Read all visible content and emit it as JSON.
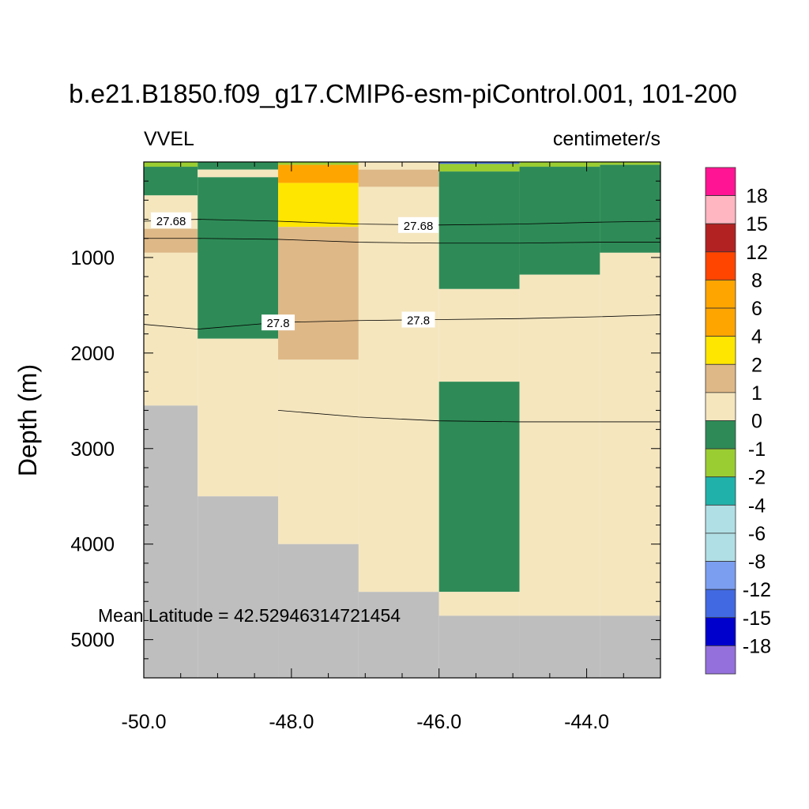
{
  "chart_data": {
    "type": "heatmap",
    "title": "b.e21.B1850.f09_g17.CMIP6-esm-piControl.001, 101-200",
    "left_label": "VVEL",
    "right_label": "centimeter/s",
    "ylabel": "Depth (m)",
    "xlabel": "",
    "annotation": "Mean Latitude = 42.52946314721454",
    "xlim": [
      -50.0,
      -43.0
    ],
    "ylim": [
      0,
      5400
    ],
    "y_reversed": true,
    "x_ticks": [
      "-50.0",
      "-48.0",
      "-46.0",
      "-44.0"
    ],
    "x_tick_values": [
      -50,
      -48,
      -46,
      -44
    ],
    "y_ticks": [
      "1000",
      "2000",
      "3000",
      "4000",
      "5000"
    ],
    "y_tick_values": [
      1000,
      2000,
      3000,
      4000,
      5000
    ],
    "colors": {
      "c18": "#ff1493",
      "c15": "#ffb6c1",
      "c12": "#b22222",
      "c8": "#ff4500",
      "c6": "#ffa500",
      "c4": "#ffa500",
      "c2": "#ffe600",
      "c1": "#deb887",
      "c0": "#f5e6be",
      "cm1": "#2e8b57",
      "cm2": "#9acd32",
      "cm4": "#20b2aa",
      "cm6": "#b0e0e6",
      "cm8": "#b0dfe5",
      "cm12": "#7b9ef0",
      "cm15": "#4169e1",
      "cm18": "#0000cd",
      "cm20": "#9370db",
      "land": "#bebebe",
      "orange": "#ffa500"
    },
    "colorbar": {
      "colors": [
        "#ff1493",
        "#ffb6c1",
        "#b22222",
        "#ff4500",
        "#ffa500",
        "#ffa500",
        "#ffe600",
        "#deb887",
        "#f5e6be",
        "#2e8b57",
        "#9acd32",
        "#20b2aa",
        "#b0e0e6",
        "#b0dfe5",
        "#7b9ef0",
        "#4169e1",
        "#0000cd",
        "#9370db"
      ],
      "labels": [
        "18",
        "15",
        "12",
        "8",
        "6",
        "4",
        "2",
        "1",
        "0",
        "-1",
        "-2",
        "-4",
        "-6",
        "-8",
        "-12",
        "-15",
        "-18"
      ]
    },
    "cells": [
      {
        "x0": -50.0,
        "x1": -49.27,
        "y0": 0,
        "y1": 50,
        "color": "cm2"
      },
      {
        "x0": -50.0,
        "x1": -49.27,
        "y0": 50,
        "y1": 350,
        "color": "cm1"
      },
      {
        "x0": -50.0,
        "x1": -49.27,
        "y0": 350,
        "y1": 700,
        "color": "c0"
      },
      {
        "x0": -50.0,
        "x1": -49.27,
        "y0": 700,
        "y1": 950,
        "color": "c1"
      },
      {
        "x0": -50.0,
        "x1": -49.27,
        "y0": 950,
        "y1": 2550,
        "color": "c0"
      },
      {
        "x0": -50.0,
        "x1": -49.27,
        "y0": 2550,
        "y1": 5400,
        "color": "land"
      },
      {
        "x0": -49.27,
        "x1": -48.18,
        "y0": 0,
        "y1": 80,
        "color": "cm1"
      },
      {
        "x0": -49.27,
        "x1": -48.18,
        "y0": 80,
        "y1": 160,
        "color": "c0"
      },
      {
        "x0": -49.27,
        "x1": -48.18,
        "y0": 160,
        "y1": 1850,
        "color": "cm1"
      },
      {
        "x0": -49.27,
        "x1": -48.18,
        "y0": 1850,
        "y1": 3500,
        "color": "c0"
      },
      {
        "x0": -49.27,
        "x1": -48.18,
        "y0": 3500,
        "y1": 5400,
        "color": "land"
      },
      {
        "x0": -48.18,
        "x1": -47.09,
        "y0": 0,
        "y1": 30,
        "color": "cm2"
      },
      {
        "x0": -48.18,
        "x1": -47.09,
        "y0": 30,
        "y1": 220,
        "color": "orange"
      },
      {
        "x0": -48.18,
        "x1": -47.09,
        "y0": 220,
        "y1": 680,
        "color": "c2"
      },
      {
        "x0": -48.18,
        "x1": -47.09,
        "y0": 680,
        "y1": 2070,
        "color": "c1"
      },
      {
        "x0": -48.18,
        "x1": -47.09,
        "y0": 2070,
        "y1": 4000,
        "color": "c0"
      },
      {
        "x0": -48.18,
        "x1": -47.09,
        "y0": 4000,
        "y1": 5400,
        "color": "land"
      },
      {
        "x0": -47.09,
        "x1": -46.0,
        "y0": 0,
        "y1": 80,
        "color": "c0"
      },
      {
        "x0": -47.09,
        "x1": -46.0,
        "y0": 80,
        "y1": 260,
        "color": "c1"
      },
      {
        "x0": -47.09,
        "x1": -46.0,
        "y0": 260,
        "y1": 4500,
        "color": "c0"
      },
      {
        "x0": -47.09,
        "x1": -46.0,
        "y0": 4500,
        "y1": 5400,
        "color": "land"
      },
      {
        "x0": -46.0,
        "x1": -44.91,
        "y0": 0,
        "y1": 20,
        "color": "cm15"
      },
      {
        "x0": -46.0,
        "x1": -44.91,
        "y0": 20,
        "y1": 100,
        "color": "cm2"
      },
      {
        "x0": -46.0,
        "x1": -44.91,
        "y0": 100,
        "y1": 1330,
        "color": "cm1"
      },
      {
        "x0": -46.0,
        "x1": -44.91,
        "y0": 1330,
        "y1": 2300,
        "color": "c0"
      },
      {
        "x0": -46.0,
        "x1": -44.91,
        "y0": 2300,
        "y1": 4500,
        "color": "cm1"
      },
      {
        "x0": -46.0,
        "x1": -44.91,
        "y0": 4500,
        "y1": 4750,
        "color": "c0"
      },
      {
        "x0": -46.0,
        "x1": -44.91,
        "y0": 4750,
        "y1": 5400,
        "color": "land"
      },
      {
        "x0": -44.91,
        "x1": -43.82,
        "y0": 0,
        "y1": 50,
        "color": "cm2"
      },
      {
        "x0": -44.91,
        "x1": -43.82,
        "y0": 50,
        "y1": 1180,
        "color": "cm1"
      },
      {
        "x0": -44.91,
        "x1": -43.82,
        "y0": 1180,
        "y1": 4750,
        "color": "c0"
      },
      {
        "x0": -44.91,
        "x1": -43.82,
        "y0": 4750,
        "y1": 5400,
        "color": "land"
      },
      {
        "x0": -43.82,
        "x1": -43.0,
        "y0": 0,
        "y1": 30,
        "color": "cm2"
      },
      {
        "x0": -43.82,
        "x1": -43.0,
        "y0": 30,
        "y1": 950,
        "color": "cm1"
      },
      {
        "x0": -43.82,
        "x1": -43.0,
        "y0": 950,
        "y1": 4750,
        "color": "c0"
      },
      {
        "x0": -43.82,
        "x1": -43.0,
        "y0": 4750,
        "y1": 5400,
        "color": "land"
      }
    ],
    "contours": [
      {
        "points": [
          [
            -50.0,
            620
          ],
          [
            -49.27,
            600
          ],
          [
            -48.18,
            620
          ],
          [
            -47.09,
            650
          ],
          [
            -46.0,
            660
          ],
          [
            -44.91,
            650
          ],
          [
            -43.82,
            630
          ],
          [
            -43.0,
            620
          ]
        ]
      },
      {
        "points": [
          [
            -50.0,
            800
          ],
          [
            -49.27,
            800
          ],
          [
            -48.18,
            810
          ],
          [
            -47.09,
            840
          ],
          [
            -46.0,
            850
          ],
          [
            -44.91,
            850
          ],
          [
            -43.82,
            840
          ],
          [
            -43.0,
            840
          ]
        ]
      },
      {
        "points": [
          [
            -50.0,
            1700
          ],
          [
            -49.27,
            1750
          ],
          [
            -48.18,
            1680
          ],
          [
            -47.09,
            1660
          ],
          [
            -46.0,
            1650
          ],
          [
            -44.91,
            1640
          ],
          [
            -43.82,
            1620
          ],
          [
            -43.0,
            1600
          ]
        ]
      },
      {
        "points": [
          [
            -48.18,
            2600
          ],
          [
            -47.09,
            2670
          ],
          [
            -46.0,
            2710
          ],
          [
            -44.91,
            2720
          ],
          [
            -43.82,
            2720
          ],
          [
            -43.0,
            2720
          ]
        ]
      }
    ],
    "contour_labels": [
      {
        "text": "27.68",
        "x": -49.63,
        "y": 610
      },
      {
        "text": "27.68",
        "x": -46.28,
        "y": 660
      },
      {
        "text": "27.8",
        "x": -48.18,
        "y": 1680
      },
      {
        "text": "27.8",
        "x": -46.28,
        "y": 1650
      }
    ]
  }
}
